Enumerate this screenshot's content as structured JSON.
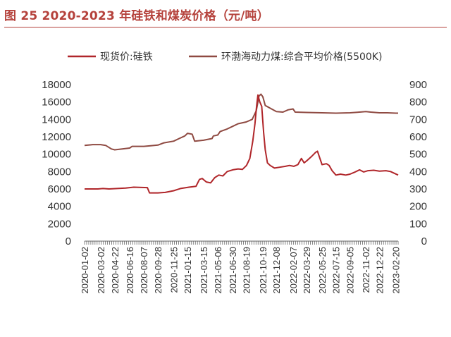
{
  "title": "图 25 2020-2023 年硅铁和煤炭价格（元/吨）",
  "colors": {
    "accent": "#b5423c",
    "series_spot": "#b0262a",
    "series_coal": "#8f4a42",
    "axis": "#666666",
    "text": "#333333"
  },
  "chart_data": {
    "type": "line",
    "title": "图 25 2020-2023 年硅铁和煤炭价格（元/吨）",
    "xlabel": "",
    "ylabel": "",
    "grid": false,
    "legend_position": "top",
    "x_ticks": [
      "2020-01-02",
      "2020-03-02",
      "2020-04-22",
      "2020-06-16",
      "2020-08-07",
      "2020-09-28",
      "2020-11-25",
      "2021-01-15",
      "2021-03-15",
      "2021-05-06",
      "2021-06-30",
      "2021-08-19",
      "2021-10-19",
      "2021-12-08",
      "2022-02-07",
      "2022-03-29",
      "2022-05-25",
      "2022-07-15",
      "2022-09-05",
      "2022-11-02",
      "2022-12-22",
      "2023-02-20"
    ],
    "y_left": {
      "ticks": [
        0,
        2000,
        4000,
        6000,
        8000,
        10000,
        12000,
        14000,
        16000,
        18000
      ],
      "range": [
        0,
        18000
      ]
    },
    "y_right": {
      "ticks": [
        0,
        100,
        200,
        300,
        400,
        500,
        600,
        700,
        800,
        900
      ],
      "range": [
        0,
        900
      ]
    },
    "series": [
      {
        "name": "现货价:硅铁",
        "axis": "left",
        "points": [
          [
            "2020-01-02",
            6000
          ],
          [
            "2020-02-20",
            6000
          ],
          [
            "2020-03-10",
            6050
          ],
          [
            "2020-04-01",
            6000
          ],
          [
            "2020-05-01",
            6050
          ],
          [
            "2020-06-01",
            6100
          ],
          [
            "2020-07-01",
            6200
          ],
          [
            "2020-08-20",
            6150
          ],
          [
            "2020-08-28",
            5550
          ],
          [
            "2020-09-28",
            5550
          ],
          [
            "2020-10-25",
            5600
          ],
          [
            "2020-11-25",
            5800
          ],
          [
            "2020-12-20",
            6050
          ],
          [
            "2021-01-20",
            6200
          ],
          [
            "2021-02-15",
            6300
          ],
          [
            "2021-02-28",
            7100
          ],
          [
            "2021-03-10",
            7200
          ],
          [
            "2021-03-25",
            6800
          ],
          [
            "2021-04-10",
            6700
          ],
          [
            "2021-04-25",
            7300
          ],
          [
            "2021-05-10",
            7600
          ],
          [
            "2021-05-25",
            7500
          ],
          [
            "2021-06-10",
            8000
          ],
          [
            "2021-06-30",
            8200
          ],
          [
            "2021-07-20",
            8300
          ],
          [
            "2021-08-05",
            8250
          ],
          [
            "2021-08-20",
            8700
          ],
          [
            "2021-09-01",
            9500
          ],
          [
            "2021-09-12",
            11500
          ],
          [
            "2021-09-20",
            13500
          ],
          [
            "2021-09-26",
            15500
          ],
          [
            "2021-10-01",
            16800
          ],
          [
            "2021-10-08",
            16000
          ],
          [
            "2021-10-15",
            15500
          ],
          [
            "2021-10-22",
            12500
          ],
          [
            "2021-10-28",
            10500
          ],
          [
            "2021-11-05",
            9000
          ],
          [
            "2021-11-15",
            8700
          ],
          [
            "2021-12-01",
            8400
          ],
          [
            "2021-12-20",
            8500
          ],
          [
            "2022-01-10",
            8600
          ],
          [
            "2022-01-25",
            8700
          ],
          [
            "2022-02-10",
            8600
          ],
          [
            "2022-02-25",
            8800
          ],
          [
            "2022-03-10",
            9500
          ],
          [
            "2022-03-20",
            9000
          ],
          [
            "2022-04-01",
            9300
          ],
          [
            "2022-04-15",
            9700
          ],
          [
            "2022-05-01",
            10200
          ],
          [
            "2022-05-08",
            10350
          ],
          [
            "2022-05-15",
            9700
          ],
          [
            "2022-05-25",
            8800
          ],
          [
            "2022-06-10",
            8900
          ],
          [
            "2022-06-20",
            8700
          ],
          [
            "2022-07-01",
            8100
          ],
          [
            "2022-07-15",
            7600
          ],
          [
            "2022-08-01",
            7700
          ],
          [
            "2022-08-20",
            7600
          ],
          [
            "2022-09-05",
            7700
          ],
          [
            "2022-09-20",
            7900
          ],
          [
            "2022-10-10",
            8200
          ],
          [
            "2022-10-25",
            7950
          ],
          [
            "2022-11-10",
            8100
          ],
          [
            "2022-12-01",
            8150
          ],
          [
            "2022-12-22",
            8050
          ],
          [
            "2023-01-15",
            8100
          ],
          [
            "2023-02-01",
            8000
          ],
          [
            "2023-02-15",
            7800
          ],
          [
            "2023-03-01",
            7600
          ]
        ]
      },
      {
        "name": "环渤海动力煤:综合平均价格(5500K)",
        "axis": "right",
        "points": [
          [
            "2020-01-02",
            550
          ],
          [
            "2020-02-01",
            555
          ],
          [
            "2020-03-01",
            555
          ],
          [
            "2020-03-20",
            550
          ],
          [
            "2020-04-10",
            530
          ],
          [
            "2020-04-22",
            525
          ],
          [
            "2020-05-20",
            530
          ],
          [
            "2020-06-16",
            535
          ],
          [
            "2020-06-25",
            545
          ],
          [
            "2020-08-07",
            545
          ],
          [
            "2020-09-01",
            548
          ],
          [
            "2020-09-28",
            552
          ],
          [
            "2020-10-20",
            565
          ],
          [
            "2020-11-25",
            575
          ],
          [
            "2020-12-15",
            590
          ],
          [
            "2021-01-05",
            605
          ],
          [
            "2021-01-15",
            620
          ],
          [
            "2021-02-01",
            615
          ],
          [
            "2021-02-10",
            575
          ],
          [
            "2021-03-15",
            580
          ],
          [
            "2021-04-15",
            590
          ],
          [
            "2021-04-20",
            605
          ],
          [
            "2021-05-06",
            610
          ],
          [
            "2021-05-15",
            630
          ],
          [
            "2021-06-10",
            645
          ],
          [
            "2021-06-30",
            660
          ],
          [
            "2021-07-20",
            675
          ],
          [
            "2021-08-19",
            685
          ],
          [
            "2021-09-10",
            700
          ],
          [
            "2021-09-25",
            750
          ],
          [
            "2021-10-05",
            835
          ],
          [
            "2021-10-12",
            845
          ],
          [
            "2021-10-19",
            830
          ],
          [
            "2021-10-28",
            780
          ],
          [
            "2021-11-20",
            760
          ],
          [
            "2021-12-08",
            745
          ],
          [
            "2022-01-01",
            742
          ],
          [
            "2022-01-20",
            755
          ],
          [
            "2022-02-07",
            760
          ],
          [
            "2022-02-15",
            742
          ],
          [
            "2022-03-29",
            740
          ],
          [
            "2022-05-25",
            738
          ],
          [
            "2022-07-15",
            736
          ],
          [
            "2022-09-05",
            738
          ],
          [
            "2022-10-10",
            742
          ],
          [
            "2022-11-02",
            745
          ],
          [
            "2022-11-20",
            742
          ],
          [
            "2022-12-22",
            738
          ],
          [
            "2023-01-20",
            738
          ],
          [
            "2023-02-20",
            736
          ],
          [
            "2023-03-01",
            736
          ]
        ]
      }
    ]
  }
}
